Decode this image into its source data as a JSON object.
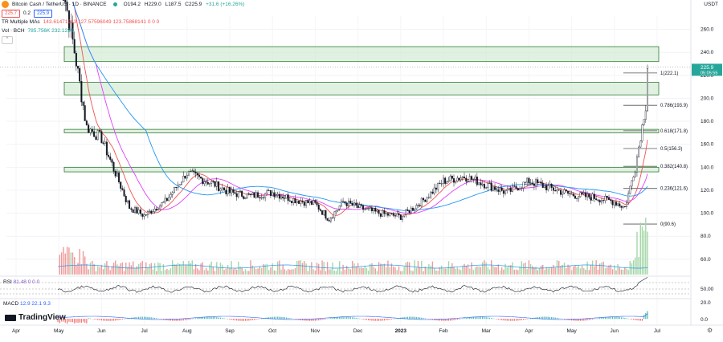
{
  "header": {
    "pair": "Bitcoin Cash / TetherUS · 1D · BINANCE",
    "currency": "USDT",
    "ohlc": {
      "o": "O194.2",
      "h": "H229.0",
      "l": "L187.5",
      "c": "C225.9",
      "chg": "+31.6 (+16.26%)"
    },
    "bid": "225.7",
    "spread": "0.2",
    "ask": "225.9",
    "ma_label": "TR Multiple MAs",
    "ma_values": "143.61471943  127.57596049  123.75868141  0  0  0",
    "vol_label": "Vol · BCH",
    "vol_values": "785.756K  232.123K",
    "rsi_label": "RSI",
    "rsi_value": "81.48  0  0  0",
    "macd_label": "MACD",
    "macd_values": "12.9  22.1  9.3",
    "brand": "TradingView"
  },
  "price_tag": {
    "value": "225.9",
    "countdown": "05:05:55"
  },
  "colors": {
    "up": "#26a69a",
    "down": "#ef5350",
    "ma_fast": "#ef5350",
    "ma_mid": "#e040fb",
    "ma_slow": "#2196f3",
    "zone_fill": "#c8e6c9",
    "zone_border": "#2e7d32"
  },
  "chart_data": {
    "type": "candlestick",
    "x_ticks": [
      "Apr",
      "May",
      "Jun",
      "Jul",
      "Aug",
      "Sep",
      "Oct",
      "Nov",
      "Dec",
      "2023",
      "Feb",
      "Mar",
      "Apr",
      "May",
      "Jun",
      "Jul"
    ],
    "y_ticks": [
      60,
      80,
      100,
      120,
      140,
      160,
      180,
      200,
      220,
      240,
      260
    ],
    "ylim": [
      48,
      280
    ],
    "close_path": [
      [
        "May",
        320
      ],
      [
        "May",
        250
      ],
      [
        "May",
        175
      ],
      [
        "Jun",
        165
      ],
      [
        "Jun",
        135
      ],
      [
        "Jun",
        105
      ],
      [
        "Jul",
        98
      ],
      [
        "Jul",
        110
      ],
      [
        "Aug",
        135
      ],
      [
        "Aug",
        130
      ],
      [
        "Aug",
        125
      ],
      [
        "Sep",
        118
      ],
      [
        "Sep",
        115
      ],
      [
        "Oct",
        118
      ],
      [
        "Oct",
        112
      ],
      [
        "Nov",
        108
      ],
      [
        "Nov",
        95
      ],
      [
        "Nov",
        110
      ],
      [
        "Dec",
        105
      ],
      [
        "Dec",
        100
      ],
      [
        "2023",
        97
      ],
      [
        "2023",
        110
      ],
      [
        "Feb",
        128
      ],
      [
        "Feb",
        132
      ],
      [
        "Mar",
        125
      ],
      [
        "Mar",
        118
      ],
      [
        "Apr",
        128
      ],
      [
        "Apr",
        122
      ],
      [
        "May",
        116
      ],
      [
        "May",
        114
      ],
      [
        "Jun",
        110
      ],
      [
        "Jun",
        105
      ],
      [
        "Jun",
        140
      ],
      [
        "Jun",
        194
      ],
      [
        "Jul",
        225.9
      ]
    ],
    "fib_levels": [
      {
        "label": "1(222.1)",
        "value": 222.1
      },
      {
        "label": "0.786(193.9)",
        "value": 193.9
      },
      {
        "label": "0.618(171.8)",
        "value": 171.8
      },
      {
        "label": "0.5(156.3)",
        "value": 156.3
      },
      {
        "label": "0.382(140.8)",
        "value": 140.8
      },
      {
        "label": "0.236(121.6)",
        "value": 121.6
      },
      {
        "label": "0(90.6)",
        "value": 90.6
      }
    ],
    "zones": [
      {
        "from": 232,
        "to": 245
      },
      {
        "from": 203,
        "to": 214
      },
      {
        "from": 170,
        "to": 173
      },
      {
        "from": 136,
        "to": 140
      }
    ],
    "rsi_ticks": [
      "50.00"
    ],
    "macd_ticks": [
      "20.0",
      "0.0"
    ]
  }
}
